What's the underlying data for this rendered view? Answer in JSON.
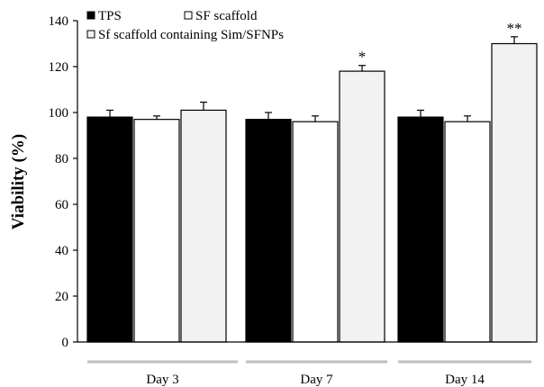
{
  "chart_data": {
    "type": "bar",
    "categories": [
      "Day 3",
      "Day 7",
      "Day 14"
    ],
    "series": [
      {
        "name": "TPS",
        "values": [
          98,
          97,
          98
        ],
        "errors": [
          3,
          3,
          3
        ],
        "color": "#000000"
      },
      {
        "name": "SF scaffold",
        "values": [
          97,
          96,
          96
        ],
        "errors": [
          1.5,
          2.5,
          2.5
        ],
        "color": "#ffffff"
      },
      {
        "name": "Sf scaffold containing Sim/SFNPs",
        "values": [
          101,
          118,
          130
        ],
        "errors": [
          3.5,
          2.5,
          3
        ],
        "color": "#f2f2f2"
      }
    ],
    "annotations": [
      {
        "category": "Day 7",
        "series": "Sf scaffold containing Sim/SFNPs",
        "text": "*"
      },
      {
        "category": "Day 14",
        "series": "Sf scaffold containing Sim/SFNPs",
        "text": "**"
      }
    ],
    "ylabel": "Viability (%)",
    "xlabel": "",
    "title": "",
    "ylim": [
      0,
      140
    ],
    "yticks": [
      "0",
      "20",
      "40",
      "60",
      "80",
      "100",
      "120",
      "140"
    ],
    "grid": false,
    "legend_position": "top-left"
  }
}
